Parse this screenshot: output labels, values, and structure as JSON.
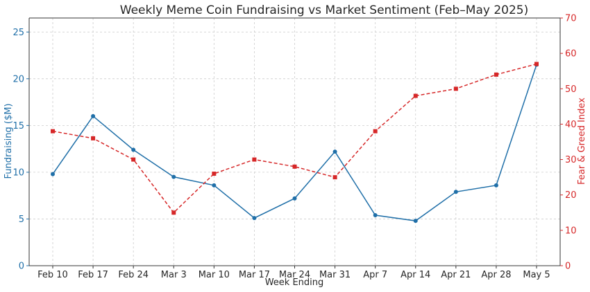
{
  "chart_data": {
    "type": "line",
    "title": "Weekly Meme Coin Fundraising vs Market Sentiment (Feb–May 2025)",
    "xlabel": "Week Ending",
    "ylabel_left": "Fundraising ($M)",
    "ylabel_right": "Fear & Greed Index",
    "categories": [
      "Feb 10",
      "Feb 17",
      "Feb 24",
      "Mar 3",
      "Mar 10",
      "Mar 17",
      "Mar 24",
      "Mar 31",
      "Apr 7",
      "Apr 14",
      "Apr 21",
      "Apr 28",
      "May 5"
    ],
    "ylim_left": [
      0,
      26.5
    ],
    "yticks_left": [
      0,
      5,
      10,
      15,
      20,
      25
    ],
    "ylim_right": [
      0,
      70
    ],
    "yticks_right": [
      0,
      10,
      20,
      30,
      40,
      50,
      60,
      70
    ],
    "grid": true,
    "series": [
      {
        "axis": "left",
        "color": "#1f6fa8",
        "marker": "circle",
        "dash": "solid",
        "values": [
          9.8,
          16.0,
          12.4,
          9.5,
          8.6,
          5.1,
          7.2,
          12.2,
          5.4,
          4.8,
          7.9,
          8.6,
          21.5
        ]
      },
      {
        "axis": "right",
        "color": "#d62728",
        "marker": "square",
        "dash": "dashed",
        "values": [
          38,
          36,
          30,
          15,
          26,
          30,
          28,
          25,
          38,
          48,
          50,
          54,
          57
        ]
      }
    ],
    "colors": {
      "left_axis": "#1f6fa8",
      "right_axis": "#d62728",
      "text": "#262626"
    }
  }
}
